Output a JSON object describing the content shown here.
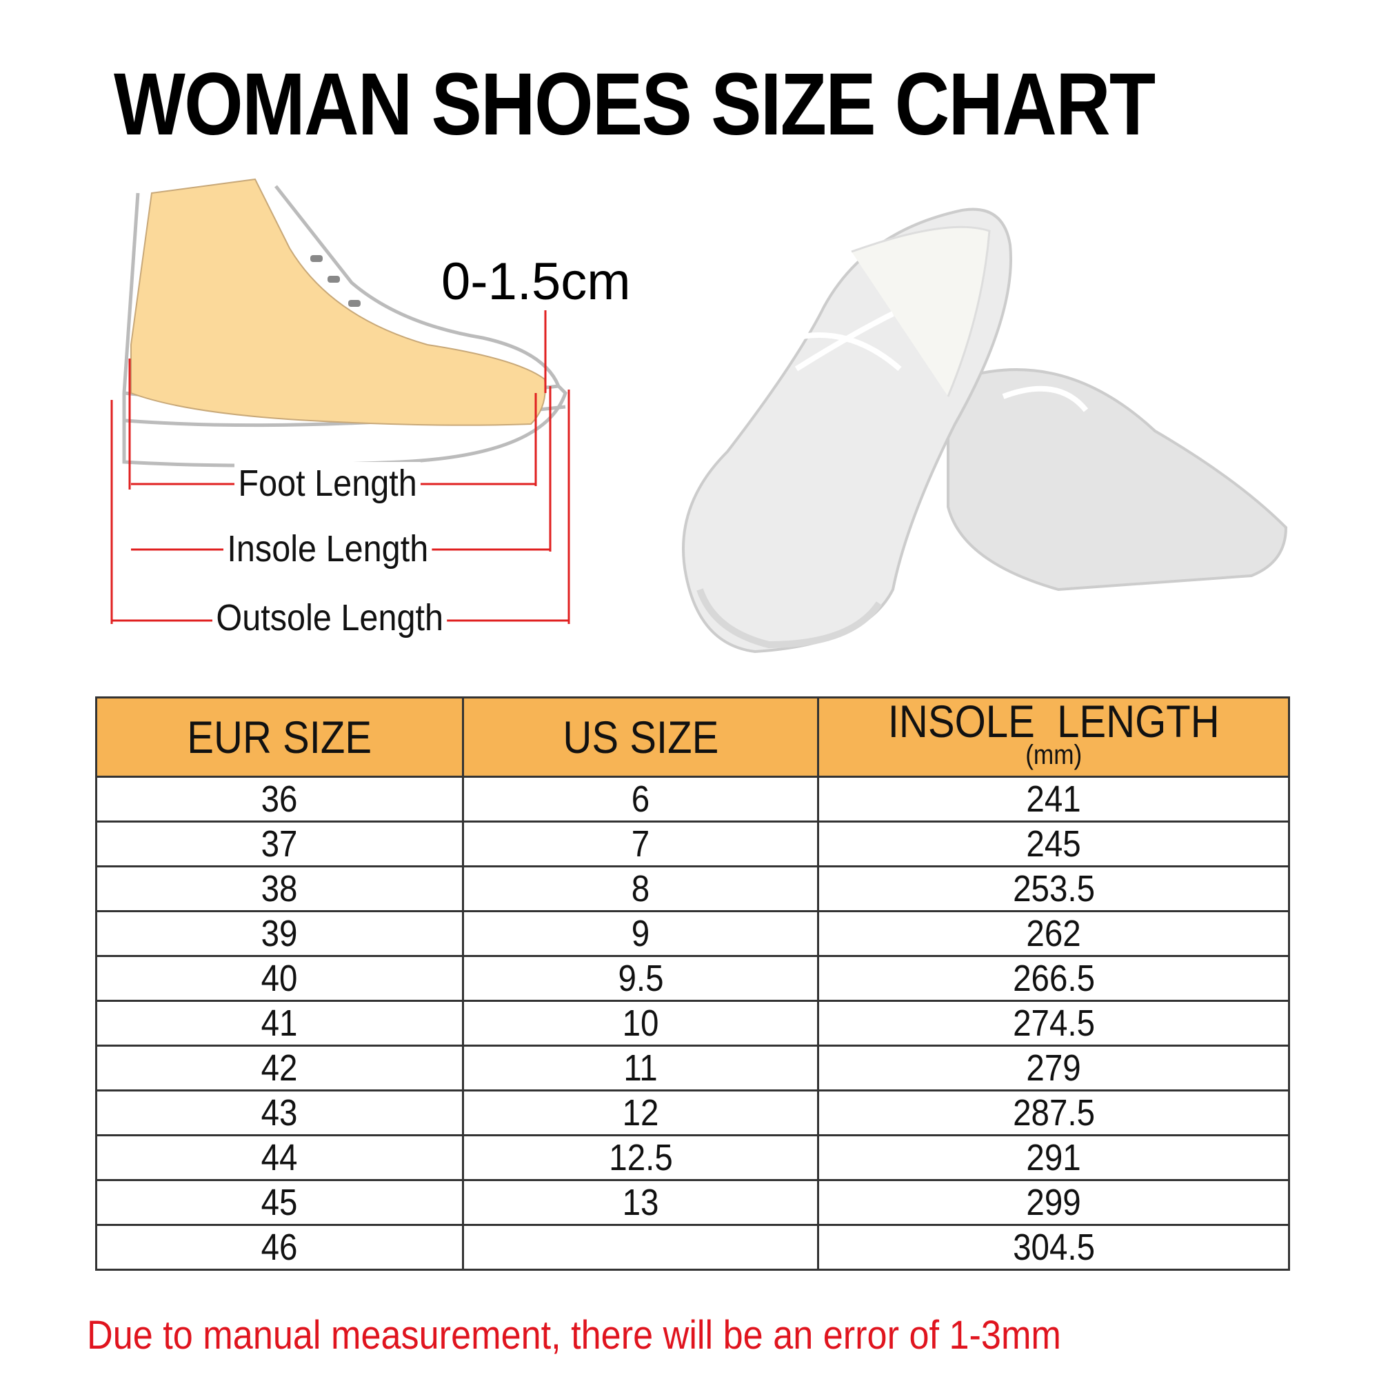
{
  "title": "WOMAN SHOES SIZE CHART",
  "diagram": {
    "gap_label": "0-1.5cm",
    "foot_length": "Foot Length",
    "insole_length": "Insole Length",
    "outsole_length": "Outsole Length",
    "arrow_color": "#e02020",
    "skin_color": "#fbd99a"
  },
  "table": {
    "header_color": "#f7b455",
    "headers": [
      "EUR SIZE",
      "US SIZE",
      "INSOLE  LENGTH"
    ],
    "header_unit": "(mm)",
    "rows": [
      [
        "36",
        "6",
        "241"
      ],
      [
        "37",
        "7",
        "245"
      ],
      [
        "38",
        "8",
        "253.5"
      ],
      [
        "39",
        "9",
        "262"
      ],
      [
        "40",
        "9.5",
        "266.5"
      ],
      [
        "41",
        "10",
        "274.5"
      ],
      [
        "42",
        "11",
        "279"
      ],
      [
        "43",
        "12",
        "287.5"
      ],
      [
        "44",
        "12.5",
        "291"
      ],
      [
        "45",
        "13",
        "299"
      ],
      [
        "46",
        "",
        "304.5"
      ]
    ]
  },
  "note": "Due to manual measurement, there will be an error of 1-3mm"
}
